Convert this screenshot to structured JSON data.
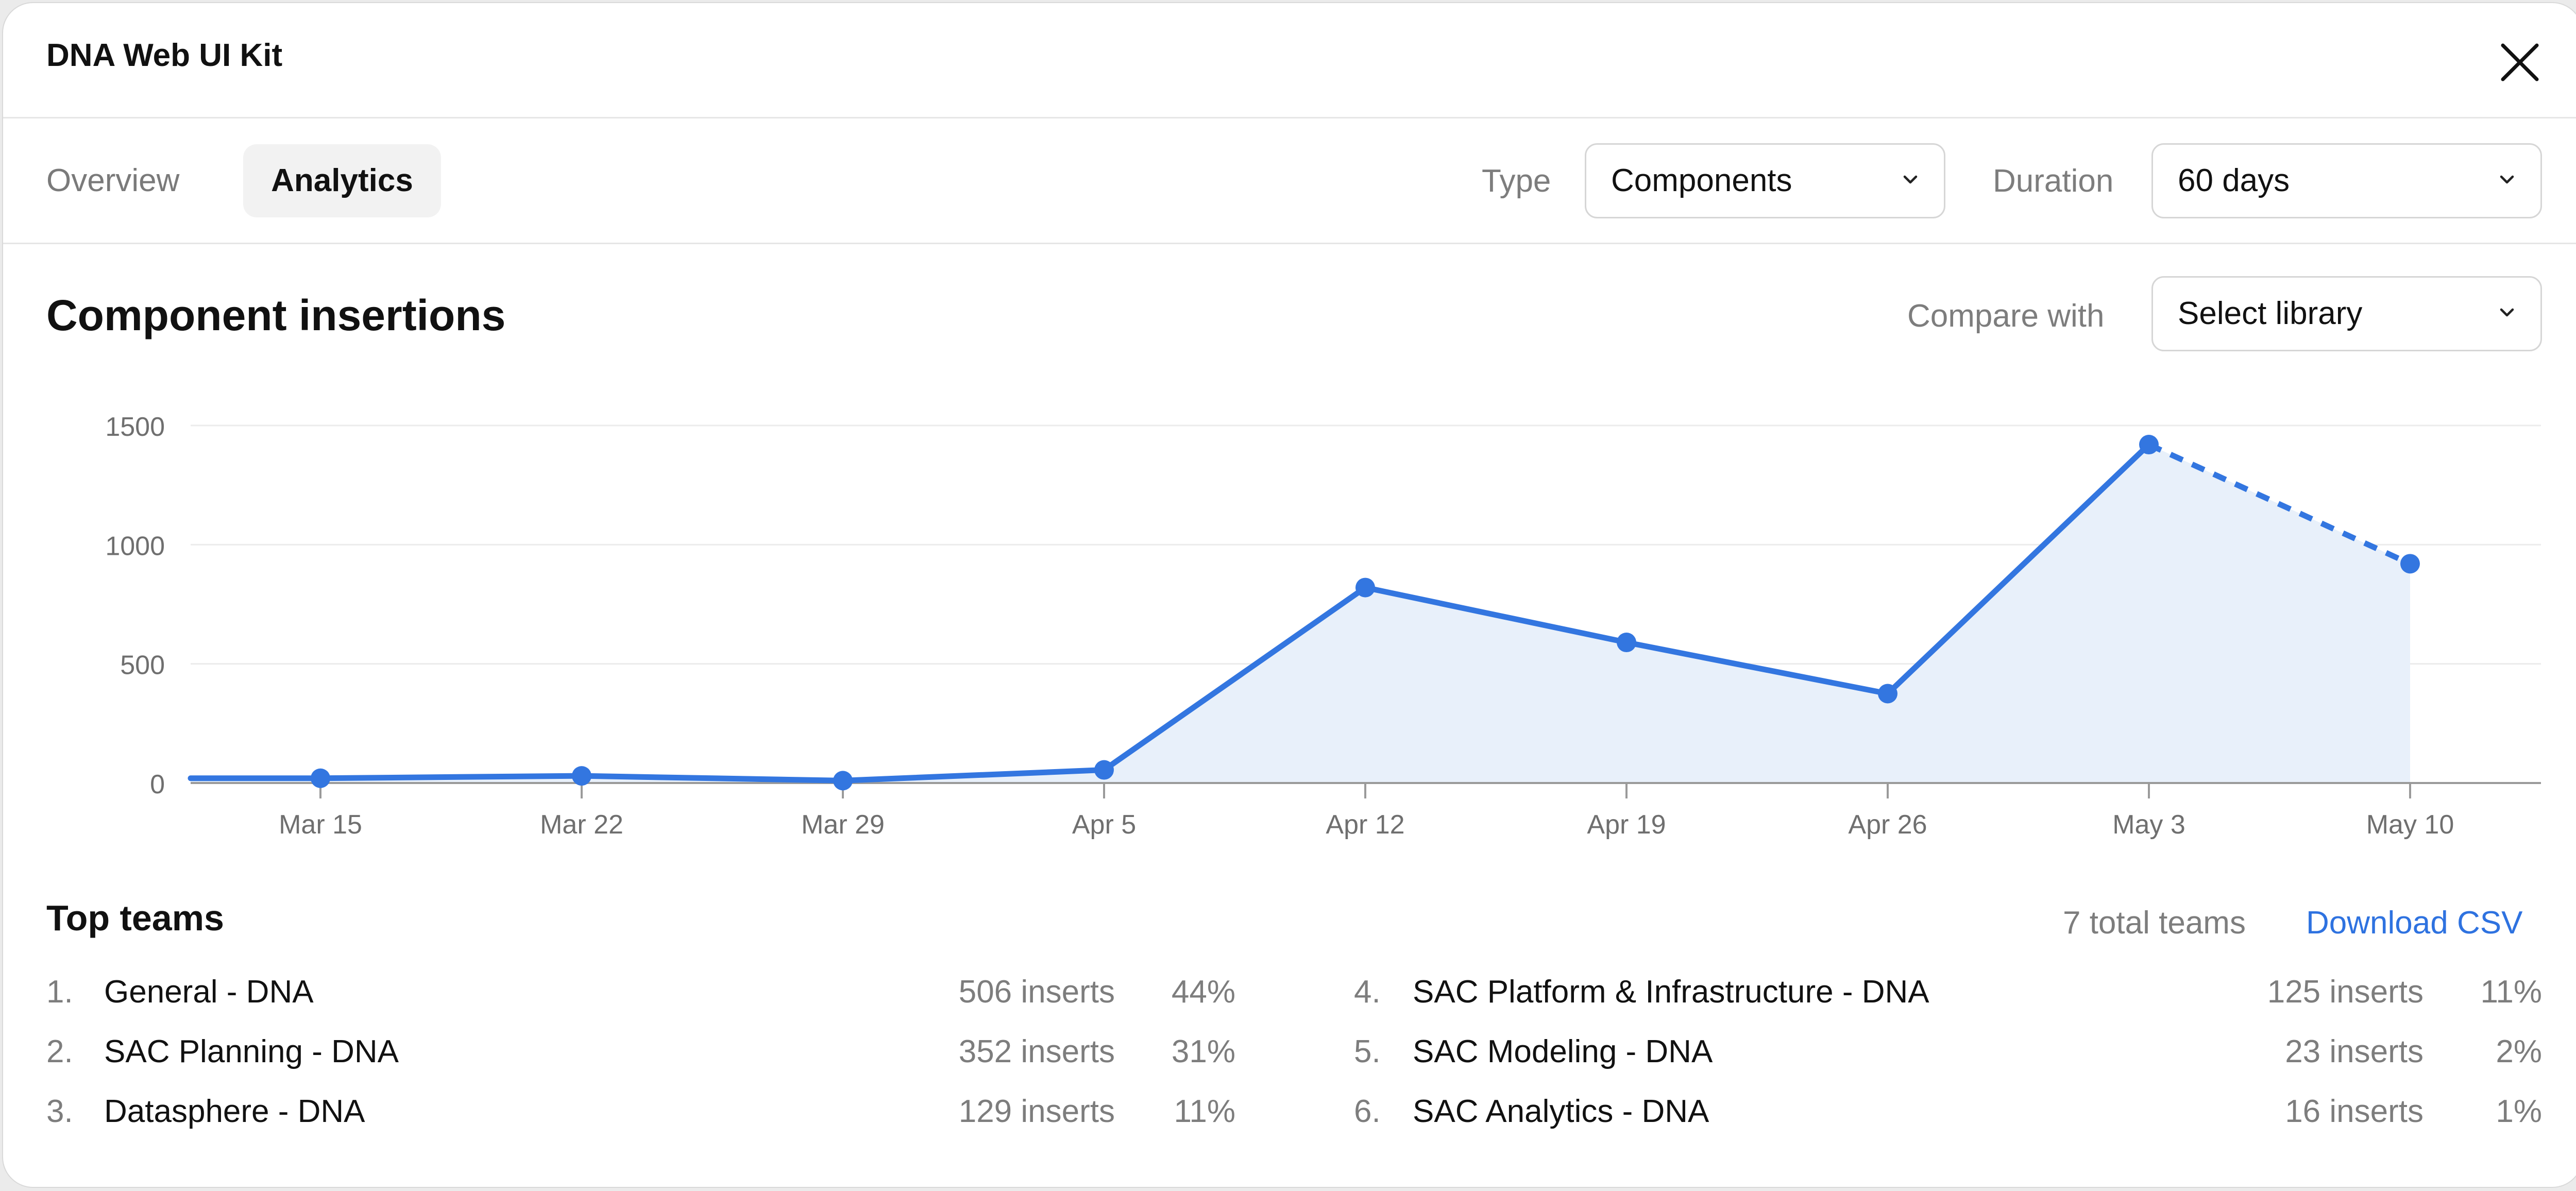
{
  "window": {
    "title": "DNA Web UI Kit"
  },
  "tabs": [
    {
      "label": "Overview",
      "active": false
    },
    {
      "label": "Analytics",
      "active": true
    }
  ],
  "filters": {
    "type_label": "Type",
    "type_value": "Components",
    "duration_label": "Duration",
    "duration_value": "60 days"
  },
  "section": {
    "title": "Component insertions",
    "compare_label": "Compare with",
    "compare_value": "Select library"
  },
  "chart_data": {
    "type": "area",
    "title": "Component insertions",
    "xlabel": "",
    "ylabel": "",
    "x": [
      "Mar 15",
      "Mar 22",
      "Mar 29",
      "Apr 5",
      "Apr 12",
      "Apr 19",
      "Apr 26",
      "May 3",
      "May 10"
    ],
    "series": [
      {
        "values": [
          20,
          30,
          10,
          55,
          820,
          590,
          375,
          1420,
          920
        ],
        "projected_last_segment": true
      }
    ],
    "y_ticks": [
      0,
      500,
      1000,
      1500
    ],
    "ylim": [
      0,
      1500
    ],
    "grid": true,
    "line_color": "#3376e0",
    "fill_color": "#e8f0fa"
  },
  "teams": {
    "title": "Top teams",
    "total_label": "7 total teams",
    "download_label": "Download CSV",
    "rows": [
      {
        "rank": "1.",
        "name": "General - DNA",
        "inserts": "506 inserts",
        "pct": "44%"
      },
      {
        "rank": "2.",
        "name": "SAC Planning - DNA",
        "inserts": "352 inserts",
        "pct": "31%"
      },
      {
        "rank": "3.",
        "name": "Datasphere - DNA",
        "inserts": "129 inserts",
        "pct": "11%"
      },
      {
        "rank": "4.",
        "name": "SAC Platform & Infrastructure - DNA",
        "inserts": "125 inserts",
        "pct": "11%"
      },
      {
        "rank": "5.",
        "name": "SAC Modeling - DNA",
        "inserts": "23 inserts",
        "pct": "2%"
      },
      {
        "rank": "6.",
        "name": "SAC Analytics - DNA",
        "inserts": "16 inserts",
        "pct": "1%"
      }
    ]
  },
  "icons": {
    "close": "close-icon",
    "dropdown": "chevron-down-icon"
  }
}
